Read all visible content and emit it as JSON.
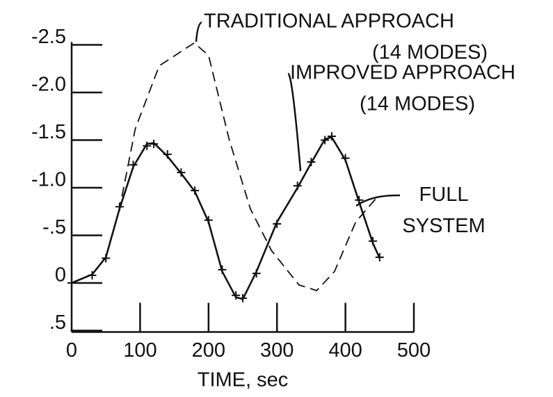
{
  "chart_data": {
    "type": "line",
    "x_label": "TIME, sec",
    "xlim": [
      0,
      500
    ],
    "xticks": [
      0,
      100,
      200,
      300,
      400,
      500
    ],
    "ylim": [
      -2.5,
      0.5
    ],
    "y_inverted": true,
    "yticks": [
      -2.5,
      {
        "value": -2,
        "label": "-2.0"
      },
      -1.5,
      {
        "value": -1,
        "label": "-1.0"
      },
      {
        "value": -0.5,
        "label": "-.5"
      },
      0,
      {
        "value": 0.5,
        "label": ".5"
      }
    ],
    "series": [
      {
        "name": [
          "TRADITIONAL APPROACH",
          "(14 MODES)"
        ],
        "style": "dashed",
        "color": "#111",
        "x": [
          0,
          30,
          50,
          70,
          93,
          128,
          179,
          200,
          230,
          261,
          292,
          332,
          358,
          384,
          415,
          445
        ],
        "values": [
          0,
          -0.09,
          -0.27,
          -0.78,
          -1.62,
          -2.28,
          -2.52,
          -2.39,
          -1.51,
          -0.78,
          -0.34,
          0.02,
          0.08,
          -0.12,
          -0.64,
          -0.89
        ]
      },
      {
        "name": [
          "IMPROVED APPROACH",
          "(14 MODES)"
        ],
        "style": "solid",
        "color": "#111",
        "x": [
          0,
          30,
          50,
          70,
          90,
          110,
          120,
          140,
          160,
          180,
          200,
          220,
          240,
          250,
          270,
          300,
          330,
          350,
          370,
          380,
          400,
          420,
          440,
          450
        ],
        "values": [
          0,
          -0.09,
          -0.27,
          -0.78,
          -1.22,
          -1.46,
          -1.47,
          -1.33,
          -1.15,
          -0.96,
          -0.64,
          -0.12,
          0.15,
          0.17,
          -0.12,
          -0.64,
          -1.0,
          -1.26,
          -1.51,
          -1.53,
          -1.29,
          -0.85,
          -0.42,
          -0.26
        ]
      },
      {
        "name": [
          "FULL SYSTEM"
        ],
        "style": "markers",
        "color": "#111",
        "x": [
          0,
          30,
          50,
          70,
          90,
          110,
          120,
          140,
          160,
          180,
          200,
          220,
          240,
          250,
          270,
          300,
          330,
          350,
          370,
          380,
          400,
          420,
          440,
          450
        ],
        "values": [
          0,
          -0.08,
          -0.26,
          -0.8,
          -1.24,
          -1.44,
          -1.46,
          -1.35,
          -1.16,
          -0.97,
          -0.66,
          -0.14,
          0.13,
          0.16,
          -0.1,
          -0.62,
          -1.02,
          -1.27,
          -1.5,
          -1.54,
          -1.31,
          -0.87,
          -0.44,
          -0.27
        ]
      }
    ]
  }
}
